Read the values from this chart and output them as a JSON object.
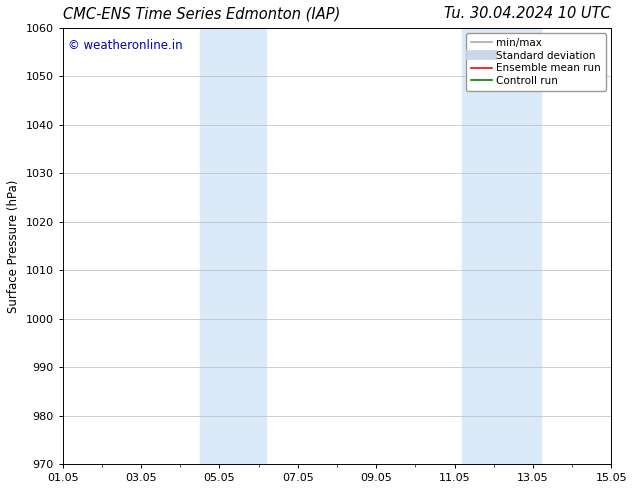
{
  "title_left": "CMC-ENS Time Series Edmonton (IAP)",
  "title_right": "Tu. 30.04.2024 10 UTC",
  "ylabel": "Surface Pressure (hPa)",
  "ylim": [
    970,
    1060
  ],
  "yticks": [
    970,
    980,
    990,
    1000,
    1010,
    1020,
    1030,
    1040,
    1050,
    1060
  ],
  "xlim": [
    0,
    14
  ],
  "xtick_labels": [
    "01.05",
    "03.05",
    "05.05",
    "07.05",
    "09.05",
    "11.05",
    "13.05",
    "15.05"
  ],
  "xtick_positions": [
    0,
    2,
    4,
    6,
    8,
    10,
    12,
    14
  ],
  "shaded_regions": [
    {
      "start": 3.5,
      "end": 5.2
    },
    {
      "start": 10.2,
      "end": 12.2
    }
  ],
  "shaded_color": "#daeaf8",
  "watermark_text": "© weatheronline.in",
  "watermark_color": "#0000bb",
  "watermark_fontsize": 8.5,
  "background_color": "#ffffff",
  "legend_items": [
    {
      "label": "min/max",
      "color": "#aaaaaa",
      "linewidth": 1.2
    },
    {
      "label": "Standard deviation",
      "color": "#c8d8e8",
      "linewidth": 7
    },
    {
      "label": "Ensemble mean run",
      "color": "#ff0000",
      "linewidth": 1.2
    },
    {
      "label": "Controll run",
      "color": "#008000",
      "linewidth": 1.2
    }
  ],
  "title_fontsize": 10.5,
  "ylabel_fontsize": 8.5,
  "tick_fontsize": 8,
  "legend_fontsize": 7.5,
  "grid_color": "#bbbbbb",
  "grid_linewidth": 0.5,
  "figsize": [
    6.34,
    4.9
  ],
  "dpi": 100
}
